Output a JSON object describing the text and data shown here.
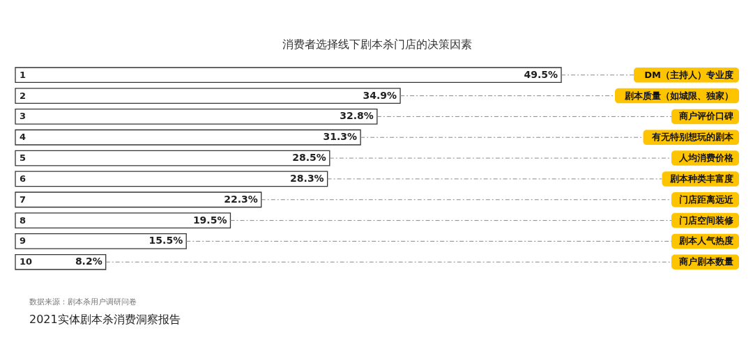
{
  "chart_data": {
    "type": "bar",
    "orientation": "horizontal",
    "title": "消费者选择线下剧本杀门店的决策因素",
    "categories": [
      "DM（主持人）专业度",
      "剧本质量（如城限、独家）",
      "商户评价口碑",
      "有无特别想玩的剧本",
      "人均消费价格",
      "剧本种类丰富度",
      "门店距离远近",
      "门店空间装修",
      "剧本人气热度",
      "商户剧本数量"
    ],
    "values": [
      49.5,
      34.9,
      32.8,
      31.3,
      28.5,
      28.3,
      22.3,
      19.5,
      15.5,
      8.2
    ],
    "value_labels": [
      "49.5%",
      "34.9%",
      "32.8%",
      "31.3%",
      "28.5%",
      "28.3%",
      "22.3%",
      "19.5%",
      "15.5%",
      "8.2%"
    ],
    "color": "#ffffff",
    "annotations": [
      {
        "text": "1",
        "y": "DM（主持人）专业度"
      },
      {
        "text": "2",
        "y": "剧本质量（如城限、独家）"
      },
      {
        "text": "3",
        "y": "商户评价口碑"
      },
      {
        "text": "4",
        "y": "有无特别想玩的剧本"
      },
      {
        "text": "5",
        "y": "人均消费价格"
      },
      {
        "text": "6",
        "y": "剧本种类丰富度"
      },
      {
        "text": "7",
        "y": "门店距离远近"
      },
      {
        "text": "8",
        "y": "门店空间装修"
      },
      {
        "text": "9",
        "y": "剧本人气热度"
      },
      {
        "text": "10",
        "y": "商户剧本数量"
      },
      "数据来源：剧本杀用户调研问卷",
      "2021实体剧本杀消费洞察报告"
    ]
  }
}
